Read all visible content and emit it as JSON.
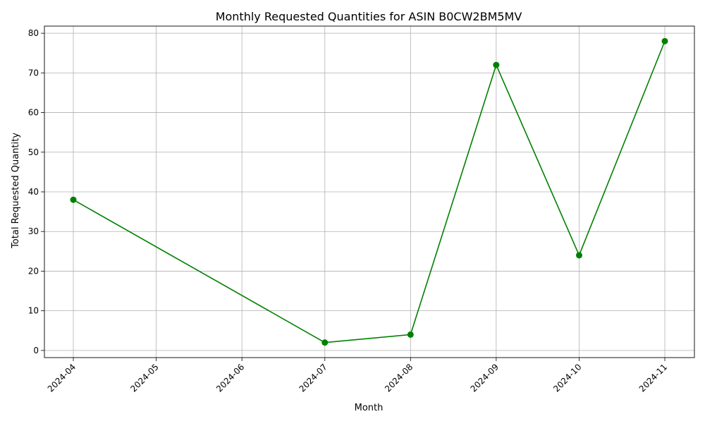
{
  "chart_data": {
    "type": "line",
    "title": "Monthly Requested Quantities for ASIN B0CW2BM5MV",
    "xlabel": "Month",
    "ylabel": "Total Requested Quantity",
    "x_ticks": [
      "2024-04",
      "2024-05",
      "2024-06",
      "2024-07",
      "2024-08",
      "2024-09",
      "2024-10",
      "2024-11"
    ],
    "y_ticks": [
      0,
      10,
      20,
      30,
      40,
      50,
      60,
      70,
      80
    ],
    "ylim": [
      -1.8,
      81.8
    ],
    "grid": true,
    "marker": "circle",
    "color": "#008000",
    "series": [
      {
        "x": [
          "2024-04",
          "2024-07",
          "2024-08",
          "2024-09",
          "2024-10",
          "2024-11"
        ],
        "values": [
          38,
          2,
          4,
          72,
          24,
          78
        ]
      }
    ]
  }
}
